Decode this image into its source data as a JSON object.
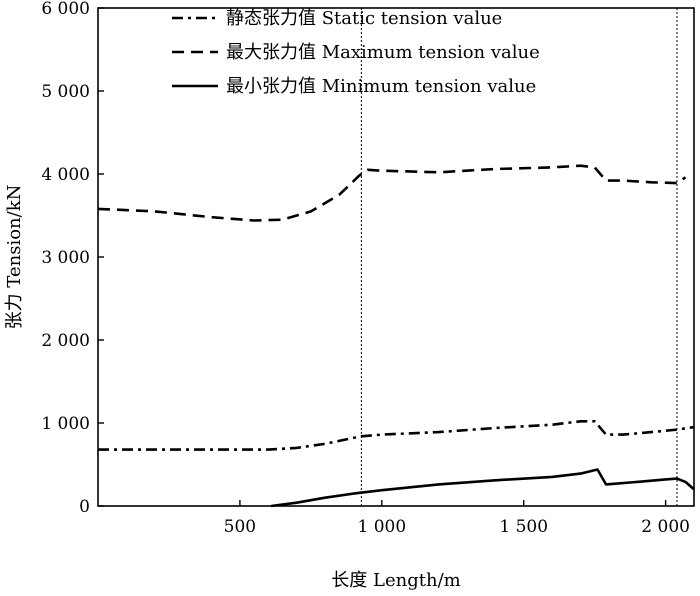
{
  "chart_data": {
    "type": "line",
    "title": "",
    "xlabel": "长度 Length/m",
    "ylabel": "张力 Tension/kN",
    "xlim": [
      0,
      2100
    ],
    "ylim": [
      0,
      6000
    ],
    "xticks": [
      500,
      1000,
      1500,
      2000
    ],
    "xtick_labels": [
      "500",
      "1 000",
      "1 500",
      "2 000"
    ],
    "yticks": [
      0,
      1000,
      2000,
      3000,
      4000,
      5000,
      6000
    ],
    "ytick_labels": [
      "0",
      "1 000",
      "2 000",
      "3 000",
      "4 000",
      "5 000",
      "6 000"
    ],
    "grid": false,
    "legend_position": "top-center",
    "reference_lines_x": [
      928,
      2040
    ],
    "series": [
      {
        "name": "静态张力值  Static tension value",
        "style": "dash-dot",
        "x": [
          0,
          200,
          400,
          600,
          700,
          800,
          900,
          928,
          1000,
          1200,
          1400,
          1600,
          1700,
          1750,
          1790,
          1850,
          1950,
          2040,
          2100
        ],
        "y": [
          680,
          680,
          680,
          680,
          700,
          750,
          820,
          840,
          860,
          890,
          940,
          980,
          1020,
          1020,
          860,
          860,
          890,
          920,
          950
        ]
      },
      {
        "name": "最大张力值  Maximum tension value",
        "style": "dashed",
        "x": [
          0,
          200,
          400,
          550,
          650,
          750,
          850,
          920,
          950,
          1000,
          1200,
          1400,
          1600,
          1700,
          1750,
          1790,
          1850,
          1950,
          2040,
          2070
        ],
        "y": [
          3580,
          3550,
          3480,
          3440,
          3450,
          3550,
          3750,
          3980,
          4050,
          4040,
          4020,
          4060,
          4080,
          4100,
          4080,
          3920,
          3920,
          3900,
          3890,
          3960
        ]
      },
      {
        "name": "最小张力值  Minimum tension value",
        "style": "solid",
        "x": [
          610,
          700,
          800,
          900,
          1000,
          1200,
          1400,
          1600,
          1700,
          1760,
          1790,
          1900,
          2000,
          2040,
          2070,
          2100
        ],
        "y": [
          0,
          40,
          100,
          150,
          190,
          260,
          310,
          350,
          390,
          440,
          260,
          290,
          320,
          330,
          290,
          200
        ]
      }
    ]
  }
}
